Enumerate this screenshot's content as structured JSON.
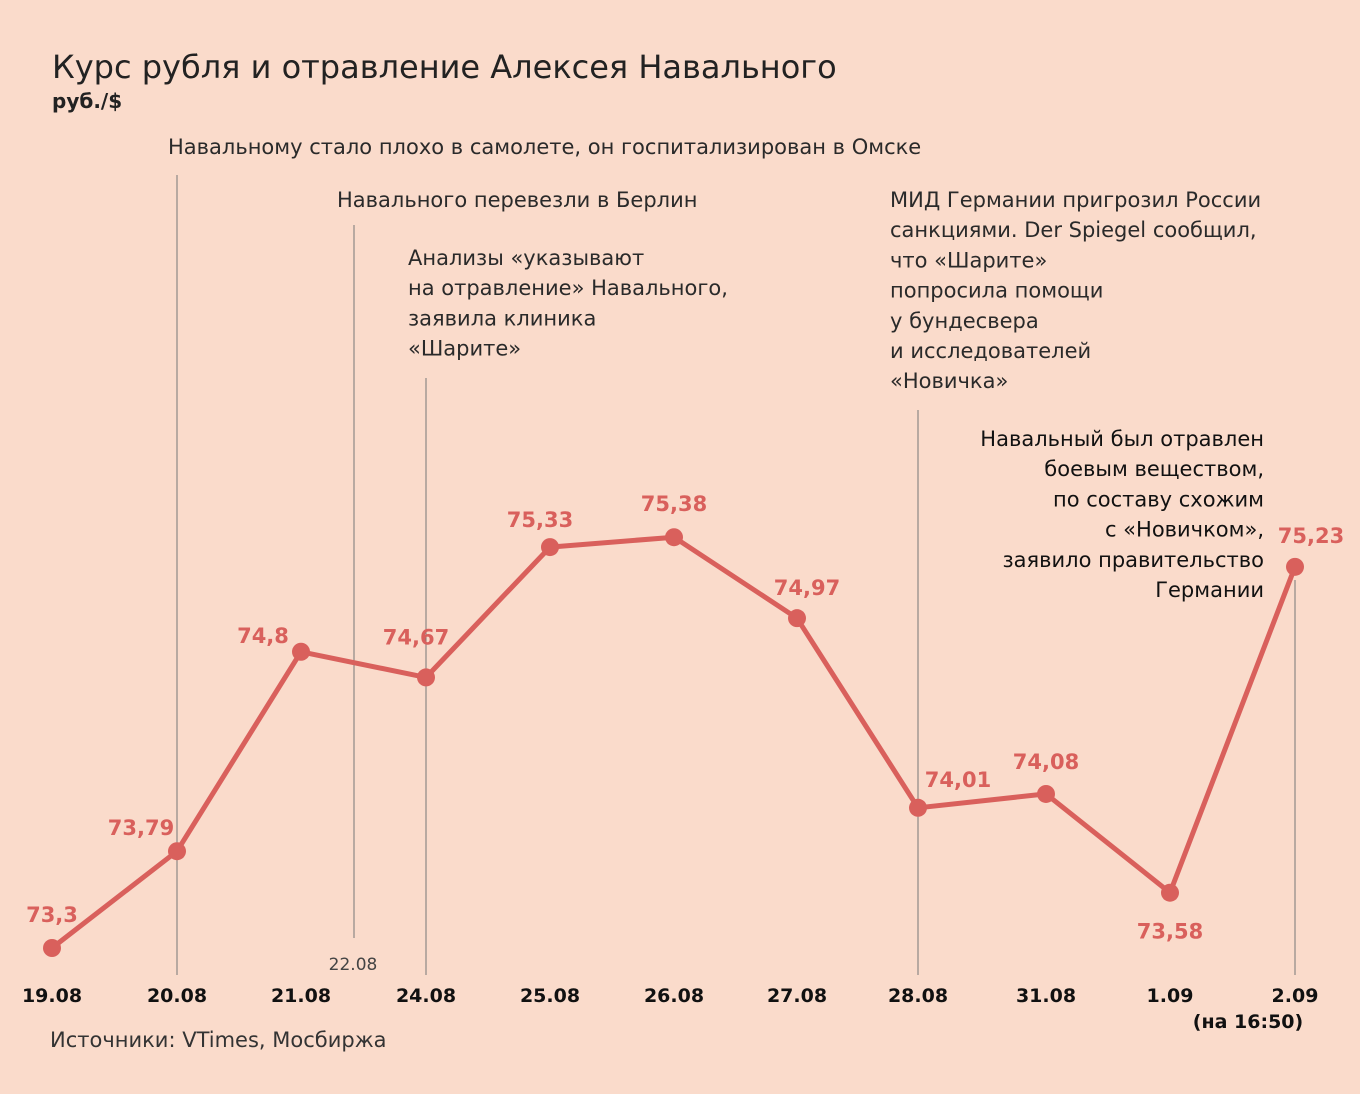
{
  "chart_data": {
    "type": "line",
    "title": "Курс рубля и отравление Алексея Навального",
    "ylabel": "руб./$",
    "x": [
      "19.08",
      "20.08",
      "21.08",
      "24.08",
      "25.08",
      "26.08",
      "27.08",
      "28.08",
      "31.08",
      "1.09",
      "2.09"
    ],
    "x_sublabels": {
      "2.09": "(на 16:50)"
    },
    "values": [
      73.3,
      73.79,
      74.8,
      74.67,
      75.33,
      75.38,
      74.97,
      74.01,
      74.08,
      73.58,
      75.23
    ],
    "value_labels": [
      "73,3",
      "73,79",
      "74,8",
      "74,67",
      "75,33",
      "75,38",
      "74,97",
      "74,01",
      "74,08",
      "73,58",
      "75,23"
    ],
    "ylim": [
      73.2,
      75.5
    ],
    "extra_tick": "22.08",
    "grid": false,
    "annotations": [
      {
        "lines": [
          "Навальному стало плохо в самолете, он госпитализирован в Омске"
        ]
      },
      {
        "lines": [
          "Навального перевезли в Берлин"
        ]
      },
      {
        "lines": [
          "Анализы «указывают",
          "на отравление» Навального,",
          "заявила клиника",
          "«Шарите»"
        ]
      },
      {
        "lines": [
          "МИД Германии пригрозил России",
          "санкциями. Der Spiegel сообщил,",
          "что «Шарите»",
          "попросила помощи",
          "у бундесвера",
          "и исследователей",
          "«Новичка»"
        ]
      },
      {
        "lines": [
          "Навальный был отравлен",
          "боевым веществом,",
          "по составу схожим",
          "с «Новичком»,",
          "заявило правительство",
          "Германии"
        ]
      }
    ],
    "source": "Источники: VTimes, Мосбиржа",
    "colors": {
      "line": "#d9605c",
      "background": "#fadbcb"
    }
  }
}
